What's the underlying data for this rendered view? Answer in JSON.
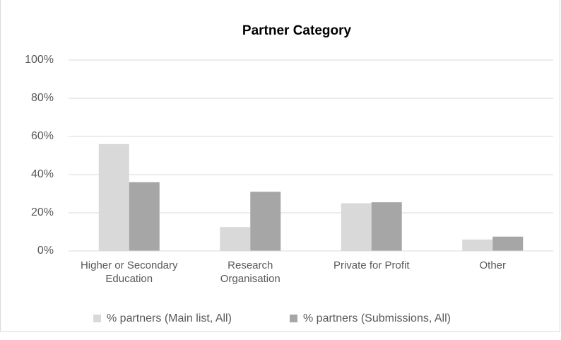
{
  "chart_data": {
    "type": "bar",
    "title": "Partner Category",
    "categories": [
      "Higher or Secondary Education",
      "Research Organisation",
      "Private for Profit",
      "Other"
    ],
    "series": [
      {
        "name": "% partners (Main list, All)",
        "color": "#d9d9d9",
        "values": [
          56,
          12.5,
          25,
          6
        ]
      },
      {
        "name": "% partners (Submissions, All)",
        "color": "#a6a6a6",
        "values": [
          36,
          31,
          25.5,
          7.5
        ]
      }
    ],
    "ylim": [
      0,
      100
    ],
    "yticks": [
      {
        "value": 0,
        "label": "0%"
      },
      {
        "value": 20,
        "label": "20%"
      },
      {
        "value": 40,
        "label": "40%"
      },
      {
        "value": 60,
        "label": "60%"
      },
      {
        "value": 80,
        "label": "80%"
      },
      {
        "value": 100,
        "label": "100%"
      }
    ],
    "grid": true,
    "legend": "bottom"
  }
}
